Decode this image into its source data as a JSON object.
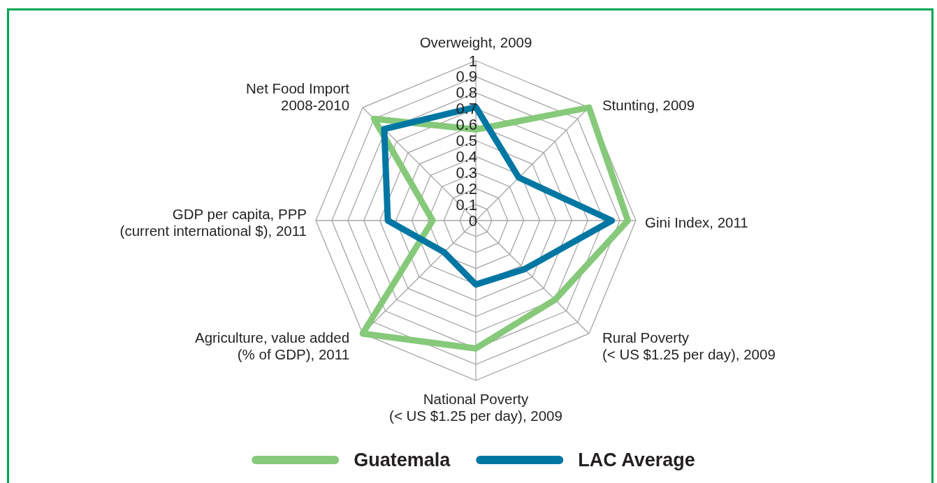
{
  "chart_data": {
    "type": "radar",
    "categories": [
      "Overweight, 2009",
      "Stunting, 2009",
      "Gini Index, 2011",
      "Rural Poverty\n(< US $1.25 per day), 2009",
      "National Poverty\n(< US $1.25 per day), 2009",
      "Agriculture, value added\n(% of GDP), 2011",
      "GDP per capita, PPP\n(current international $), 2011",
      "Net Food Import\n2008-2010"
    ],
    "series": [
      {
        "name": "Guatemala",
        "color": "#86c97a",
        "values": [
          0.57,
          1.0,
          0.95,
          0.7,
          0.8,
          1.0,
          0.27,
          0.9
        ]
      },
      {
        "name": "LAC Average",
        "color": "#0076a3",
        "values": [
          0.71,
          0.38,
          0.85,
          0.43,
          0.4,
          0.28,
          0.55,
          0.81
        ]
      }
    ],
    "ylim": [
      0,
      1
    ],
    "yticks": [
      0,
      0.1,
      0.2,
      0.3,
      0.4,
      0.5,
      0.6,
      0.7,
      0.8,
      0.9,
      1
    ],
    "grid": true,
    "legend": "bottom",
    "line_style": "solid",
    "marker": "none"
  }
}
